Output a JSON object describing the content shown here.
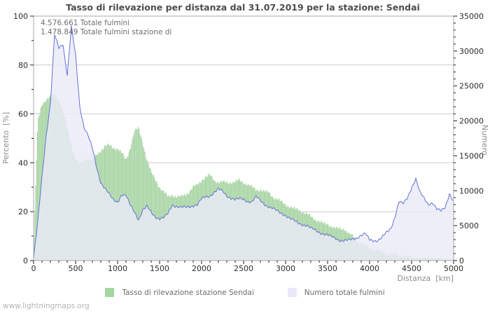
{
  "title": "Tasso di rilevazione per distanza dal 31.07.2019 per la stazione: Sendai",
  "watermark": "www.lightningmaps.org",
  "annotations": [
    "4.576.661 Totale fulmini",
    "1.478.849 Totale fulmini stazione di"
  ],
  "legend": [
    {
      "label": "Tasso di rilevazione stazione Sendai",
      "swatch_color": "#a5d6a0"
    },
    {
      "label": "Numero totale fulmini",
      "swatch_color": "#e8e8f7"
    }
  ],
  "colors": {
    "green_bar": "#a7d3a3",
    "green_bar_light": "#b5dcb1",
    "lavender_fill": "#eaeaf8",
    "blue_line": "#6472d2",
    "gridline": "#cccccc",
    "frame": "#a8a8a8",
    "tick": "#222222"
  },
  "chart_data": {
    "type": "area",
    "title": "Tasso di rilevazione per distanza dal 31.07.2019 per la stazione: Sendai",
    "x_axis": {
      "label": "Distanza  [km]",
      "range": [
        0,
        5000
      ],
      "ticks": [
        0,
        500,
        1000,
        1500,
        2000,
        2500,
        3000,
        3500,
        4000,
        4500,
        5000
      ],
      "minor_step": 100
    },
    "left_axis": {
      "label": "Percento  [%]",
      "range": [
        0,
        100
      ],
      "ticks": [
        0,
        20,
        40,
        60,
        80,
        100
      ],
      "minor_step": 10,
      "grid": true
    },
    "right_axis": {
      "label": "Numero",
      "range": [
        0,
        35000
      ],
      "ticks": [
        0,
        5000,
        10000,
        15000,
        20000,
        25000,
        30000,
        35000
      ],
      "minor_step": 1000
    },
    "totals": {
      "totale_fulmini": 4576661,
      "totale_fulmini_stazione": 1478849
    },
    "x_start_km": 0,
    "x_step_km": 50,
    "series": [
      {
        "name": "Tasso di rilevazione stazione Sendai",
        "axis": "left",
        "unit": "%",
        "style": "bars",
        "values": [
          4,
          57,
          64,
          66,
          67,
          68,
          66,
          61,
          54,
          47,
          42,
          39,
          41,
          42,
          41,
          43,
          45,
          47,
          47,
          46,
          46,
          44,
          41,
          46,
          53,
          54,
          48,
          41,
          36,
          33,
          30,
          28,
          26,
          27,
          26,
          26,
          27,
          28,
          30,
          31,
          33,
          34,
          35,
          33,
          32,
          32,
          32,
          32,
          32,
          33,
          32,
          31,
          30,
          29,
          29,
          28,
          28,
          26,
          25,
          24,
          23,
          22,
          21,
          21,
          20,
          19,
          18,
          17,
          16,
          15,
          15,
          14,
          13,
          13,
          13,
          11,
          10,
          8,
          7,
          6,
          5,
          5,
          4,
          3.5,
          3,
          2.5,
          2.5,
          2,
          2,
          1.5,
          1.5,
          1,
          1,
          1,
          1.5,
          1,
          1,
          0.8,
          0.7,
          0.6,
          0.5
        ]
      },
      {
        "name": "Numero totale fulmini",
        "axis": "right",
        "unit": "fulmini",
        "style": "area-line",
        "values": [
          300,
          5500,
          12000,
          18000,
          22500,
          32300,
          30400,
          31000,
          26600,
          33500,
          29300,
          22000,
          19200,
          17900,
          16000,
          13300,
          11200,
          10400,
          9500,
          8600,
          8400,
          9500,
          9300,
          7900,
          7000,
          5900,
          7200,
          7700,
          6900,
          6300,
          6000,
          6100,
          6700,
          8000,
          7800,
          7600,
          7600,
          7700,
          7900,
          8000,
          8800,
          9100,
          9300,
          9800,
          10200,
          9900,
          9300,
          9000,
          8700,
          8800,
          8800,
          8500,
          8400,
          9100,
          8600,
          8100,
          7700,
          7400,
          7100,
          6800,
          6500,
          6000,
          5700,
          5400,
          5200,
          5000,
          4600,
          4400,
          4100,
          3800,
          3600,
          3400,
          3200,
          2900,
          2800,
          2900,
          3100,
          3300,
          3600,
          3800,
          3000,
          2900,
          2900,
          3300,
          4000,
          4600,
          6200,
          8400,
          8100,
          9000,
          10500,
          11700,
          9700,
          8900,
          8100,
          8300,
          7300,
          7100,
          7700,
          9600,
          8400
        ]
      }
    ]
  }
}
